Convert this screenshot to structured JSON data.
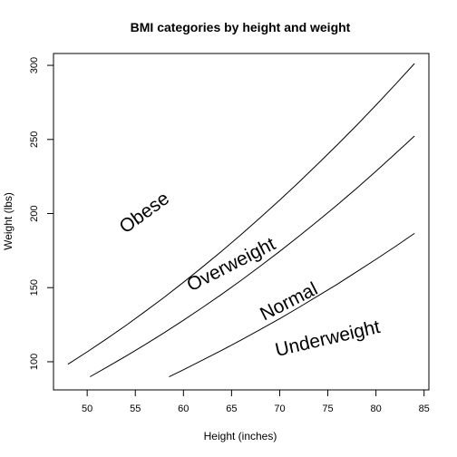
{
  "chart_data": {
    "type": "line",
    "title": "BMI categories by height and weight",
    "xlabel": "Height (inches)",
    "ylabel": "Weight (lbs)",
    "xlim": [
      46.5,
      85.5
    ],
    "ylim": [
      81,
      308
    ],
    "xticks": [
      50,
      55,
      60,
      65,
      70,
      75,
      80,
      85
    ],
    "yticks": [
      100,
      150,
      200,
      250,
      300
    ],
    "grid": false,
    "series": [
      {
        "x": [
          48,
          50,
          52,
          54,
          56,
          58,
          60,
          62,
          64,
          66,
          68,
          70,
          72,
          74,
          76,
          78,
          80,
          82,
          84
        ],
        "values": [
          98.3,
          106.7,
          115.4,
          124.4,
          133.8,
          143.5,
          153.6,
          164.0,
          174.8,
          185.9,
          197.3,
          209.1,
          221.2,
          233.7,
          246.5,
          259.6,
          273.1,
          287.0,
          301.2
        ]
      },
      {
        "x": [
          50.3,
          52,
          54,
          56,
          58,
          60,
          62,
          64,
          66,
          68,
          70,
          72,
          74,
          76,
          78,
          80,
          82,
          84
        ],
        "values": [
          89.9,
          96.2,
          103.7,
          111.5,
          119.6,
          128.0,
          136.7,
          145.7,
          155.0,
          164.6,
          174.5,
          184.7,
          195.2,
          206.0,
          217.1,
          228.5,
          240.3,
          252.3
        ]
      },
      {
        "x": [
          58.5,
          60,
          62,
          64,
          66,
          68,
          70,
          72,
          74,
          76,
          78,
          80,
          82,
          84
        ],
        "values": [
          89.8,
          94.6,
          101.1,
          107.8,
          114.7,
          121.8,
          129.1,
          136.7,
          144.5,
          152.4,
          160.7,
          169.1,
          177.7,
          186.6
        ]
      }
    ],
    "annotations": [
      {
        "text": "Obese",
        "x": 56,
        "y": 200,
        "angle": -36
      },
      {
        "text": "Overweight",
        "x": 65,
        "y": 165,
        "angle": -27
      },
      {
        "text": "Normal",
        "x": 71,
        "y": 140,
        "angle": -27
      },
      {
        "text": "Underweight",
        "x": 75,
        "y": 115,
        "angle": -13
      }
    ]
  }
}
